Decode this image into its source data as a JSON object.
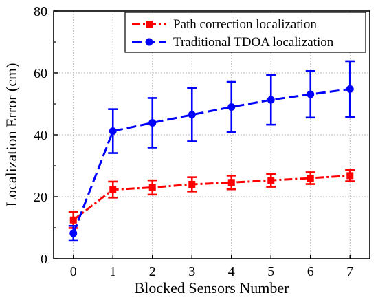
{
  "chart_data": {
    "type": "line",
    "xlabel": "Blocked Sensors Number",
    "ylabel": "Localization Error (cm)",
    "xlim": [
      -0.5,
      7.5
    ],
    "ylim": [
      0,
      80
    ],
    "xticks": [
      0,
      1,
      2,
      3,
      4,
      5,
      6,
      7
    ],
    "yticks": [
      0,
      20,
      40,
      60,
      80
    ],
    "grid": true,
    "legend_position": "top-right",
    "series": [
      {
        "name": "Path correction localization",
        "color": "#ff0000",
        "marker": "square",
        "line_style": "dash-dot",
        "x": [
          0,
          1,
          2,
          3,
          4,
          5,
          6,
          7
        ],
        "y": [
          12.5,
          22.3,
          23.0,
          24.0,
          24.6,
          25.3,
          26.0,
          26.8
        ],
        "err": [
          2.6,
          2.6,
          2.3,
          2.3,
          2.2,
          2.1,
          1.9,
          1.8
        ]
      },
      {
        "name": "Traditional TDOA localization",
        "color": "#0000ff",
        "marker": "circle",
        "line_style": "dash",
        "x": [
          0,
          1,
          2,
          3,
          4,
          5,
          6,
          7
        ],
        "y": [
          8.2,
          41.2,
          43.9,
          46.5,
          49.0,
          51.3,
          53.1,
          54.8
        ],
        "err": [
          2.4,
          7.1,
          8.0,
          8.6,
          8.1,
          8.0,
          7.5,
          9.0
        ]
      }
    ]
  }
}
